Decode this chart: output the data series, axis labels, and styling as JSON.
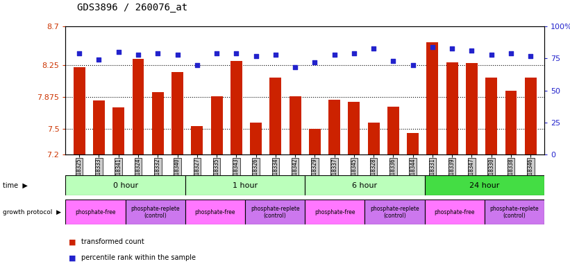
{
  "title": "GDS3896 / 260076_at",
  "samples": [
    "GSM618325",
    "GSM618333",
    "GSM618341",
    "GSM618324",
    "GSM618332",
    "GSM618340",
    "GSM618327",
    "GSM618335",
    "GSM618343",
    "GSM618326",
    "GSM618334",
    "GSM618342",
    "GSM618329",
    "GSM618337",
    "GSM618345",
    "GSM618328",
    "GSM618336",
    "GSM618344",
    "GSM618331",
    "GSM618339",
    "GSM618347",
    "GSM618330",
    "GSM618338",
    "GSM618346"
  ],
  "red_values": [
    8.22,
    7.83,
    7.75,
    8.32,
    7.93,
    8.17,
    7.53,
    7.88,
    8.3,
    7.57,
    8.1,
    7.88,
    7.5,
    7.84,
    7.82,
    7.57,
    7.76,
    7.45,
    8.52,
    8.28,
    8.27,
    8.1,
    7.95,
    8.1
  ],
  "blue_values": [
    79,
    74,
    80,
    78,
    79,
    78,
    70,
    79,
    79,
    77,
    78,
    68,
    72,
    78,
    79,
    83,
    73,
    70,
    84,
    83,
    81,
    78,
    79,
    77
  ],
  "ymin": 7.2,
  "ymax": 8.7,
  "yticks": [
    7.2,
    7.5,
    7.875,
    8.25,
    8.7
  ],
  "ytick_labels": [
    "7.2",
    "7.5",
    "7.875",
    "8.25",
    "8.7"
  ],
  "right_yticks": [
    0,
    25,
    50,
    75,
    100
  ],
  "right_ytick_labels": [
    "0",
    "25",
    "50",
    "75",
    "100%"
  ],
  "hlines": [
    7.5,
    7.875,
    8.25
  ],
  "time_groups": [
    {
      "label": "0 hour",
      "start": 0,
      "end": 6,
      "color": "#bbffbb"
    },
    {
      "label": "1 hour",
      "start": 6,
      "end": 12,
      "color": "#bbffbb"
    },
    {
      "label": "6 hour",
      "start": 12,
      "end": 18,
      "color": "#bbffbb"
    },
    {
      "label": "24 hour",
      "start": 18,
      "end": 24,
      "color": "#44dd44"
    }
  ],
  "protocol_groups": [
    {
      "label": "phosphate-free",
      "start": 0,
      "end": 3,
      "color": "#ff77ff"
    },
    {
      "label": "phosphate-replete\n(control)",
      "start": 3,
      "end": 6,
      "color": "#cc77ee"
    },
    {
      "label": "phosphate-free",
      "start": 6,
      "end": 9,
      "color": "#ff77ff"
    },
    {
      "label": "phosphate-replete\n(control)",
      "start": 9,
      "end": 12,
      "color": "#cc77ee"
    },
    {
      "label": "phosphate-free",
      "start": 12,
      "end": 15,
      "color": "#ff77ff"
    },
    {
      "label": "phosphate-replete\n(control)",
      "start": 15,
      "end": 18,
      "color": "#cc77ee"
    },
    {
      "label": "phosphate-free",
      "start": 18,
      "end": 21,
      "color": "#ff77ff"
    },
    {
      "label": "phosphate-replete\n(control)",
      "start": 21,
      "end": 24,
      "color": "#cc77ee"
    }
  ],
  "bar_color": "#cc2200",
  "dot_color": "#2222cc",
  "bg_color": "#ffffff",
  "plot_bg": "#ffffff",
  "title_color": "#000000",
  "left_axis_color": "#cc3300",
  "right_axis_color": "#2222cc",
  "xticklabel_bg": "#cccccc"
}
